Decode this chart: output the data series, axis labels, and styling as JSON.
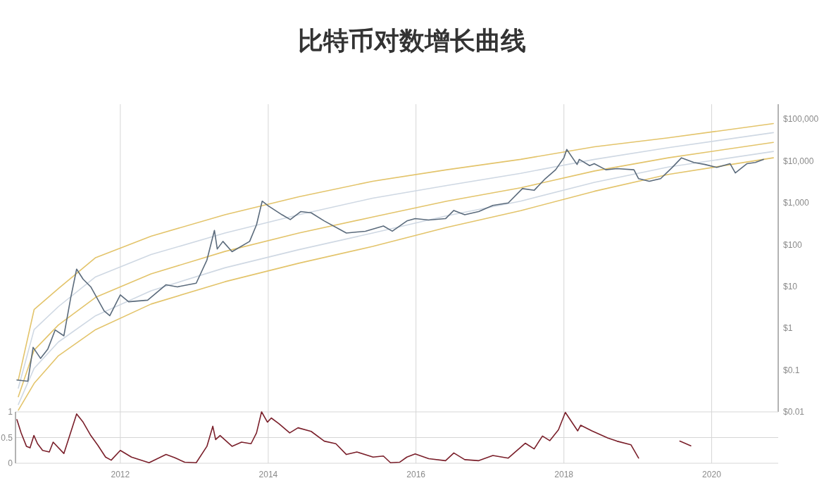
{
  "chart_data": [
    {
      "type": "line",
      "title": "比特币对数增长曲线",
      "log": true,
      "grid": "x",
      "tick_labels": "y",
      "xlim": [
        "2010-08-01",
        "2020-11-25"
      ],
      "xticks": [
        {
          "value": "2012-01-01",
          "label": null
        },
        {
          "value": "2014-01-01",
          "label": null
        },
        {
          "value": "2016-01-01",
          "label": null
        },
        {
          "value": "2018-01-01",
          "label": null
        },
        {
          "value": "2020-01-01",
          "label": null
        }
      ],
      "ylim": [
        0.01,
        230000
      ],
      "yticks": [
        {
          "value": 0.01,
          "label": "$0.01"
        },
        {
          "value": 0.1,
          "label": "$0.1"
        },
        {
          "value": 1,
          "label": "$1"
        },
        {
          "value": 10,
          "label": "$10"
        },
        {
          "value": 100,
          "label": "$100"
        },
        {
          "value": 1000,
          "label": "$1,000"
        },
        {
          "value": 10000,
          "label": "$10,000"
        },
        {
          "value": 100000,
          "label": "$100,000"
        }
      ],
      "series": [
        {
          "color": "#e3c46b",
          "x": [
            "2010-08-15",
            "2010-11-01",
            "2011-03-01",
            "2011-09-01",
            "2012-06-01",
            "2013-06-01",
            "2014-06-01",
            "2015-06-01",
            "2016-06-01",
            "2017-06-01",
            "2018-06-01",
            "2019-06-01",
            "2020-11-01"
          ],
          "values": [
            0.058,
            2.8,
            8.9,
            49,
            160,
            520,
            1400,
            3300,
            6200,
            11000,
            22000,
            36000,
            79000
          ]
        },
        {
          "color": "#cfd8e3",
          "x": [
            "2010-08-15",
            "2010-11-01",
            "2011-03-01",
            "2011-09-01",
            "2012-06-01",
            "2013-06-01",
            "2014-06-01",
            "2015-06-01",
            "2016-06-01",
            "2017-06-01",
            "2018-06-01",
            "2019-06-01",
            "2020-11-01"
          ],
          "values": [
            0.037,
            0.93,
            3.3,
            17,
            58,
            190,
            520,
            1300,
            2600,
            5100,
            11000,
            21000,
            48000
          ]
        },
        {
          "color": "#e3c46b",
          "x": [
            "2010-08-15",
            "2010-11-01",
            "2011-03-01",
            "2011-09-01",
            "2012-06-01",
            "2013-06-01",
            "2014-06-01",
            "2015-06-01",
            "2016-06-01",
            "2017-06-01",
            "2018-06-01",
            "2019-06-01",
            "2020-11-01"
          ],
          "values": [
            0.023,
            0.3,
            1.2,
            5.5,
            20,
            69,
            190,
            460,
            1100,
            2300,
            5800,
            12000,
            28000
          ]
        },
        {
          "color": "#cfd8e3",
          "x": [
            "2010-08-15",
            "2010-11-01",
            "2011-03-01",
            "2011-09-01",
            "2012-06-01",
            "2013-06-01",
            "2014-06-01",
            "2015-06-01",
            "2016-06-01",
            "2017-06-01",
            "2018-06-01",
            "2019-06-01",
            "2020-11-01"
          ],
          "values": [
            0.015,
            0.11,
            0.47,
            2.0,
            7.9,
            28,
            76,
            190,
            490,
            1100,
            3100,
            7200,
            17000
          ]
        },
        {
          "color": "#e3c46b",
          "x": [
            "2010-08-15",
            "2010-11-01",
            "2011-03-01",
            "2011-09-01",
            "2012-06-01",
            "2013-06-01",
            "2014-06-01",
            "2015-06-01",
            "2016-06-01",
            "2017-06-01",
            "2018-06-01",
            "2019-06-01",
            "2020-11-01"
          ],
          "values": [
            0.011,
            0.048,
            0.22,
            0.93,
            3.8,
            13,
            36,
            91,
            260,
            650,
            1900,
            4800,
            12000
          ]
        },
        {
          "color": "#5b6b7c",
          "x": [
            "2010-08-08",
            "2010-10-01",
            "2010-10-27",
            "2010-12-03",
            "2011-01-08",
            "2011-02-13",
            "2011-03-28",
            "2011-05-01",
            "2011-05-30",
            "2011-07-01",
            "2011-08-08",
            "2011-10-13",
            "2011-11-10",
            "2012-01-01",
            "2012-02-11",
            "2012-05-15",
            "2012-08-14",
            "2012-10-09",
            "2013-01-10",
            "2013-03-04",
            "2013-04-10",
            "2013-04-24",
            "2013-05-22",
            "2013-07-06",
            "2013-10-01",
            "2013-11-04",
            "2013-12-02",
            "2014-01-01",
            "2014-03-10",
            "2014-04-20",
            "2014-06-10",
            "2014-08-01",
            "2014-10-05",
            "2015-01-22",
            "2015-04-26",
            "2015-07-24",
            "2015-09-06",
            "2015-11-17",
            "2015-12-28",
            "2016-03-04",
            "2016-05-26",
            "2016-07-06",
            "2016-08-29",
            "2016-11-06",
            "2017-01-15",
            "2017-04-01",
            "2017-06-10",
            "2017-08-07",
            "2017-10-01",
            "2017-11-21",
            "2018-01-01",
            "2018-01-15",
            "2018-03-07",
            "2018-03-18",
            "2018-05-08",
            "2018-05-31",
            "2018-07-27",
            "2018-09-20",
            "2018-12-13",
            "2019-01-05",
            "2019-02-27",
            "2019-04-24",
            "2019-06-21",
            "2019-08-05",
            "2019-10-05",
            "2019-11-29",
            "2020-01-26",
            "2020-04-01",
            "2020-04-27",
            "2020-06-24",
            "2020-08-04",
            "2020-09-13"
          ],
          "values": [
            0.058,
            0.054,
            0.35,
            0.19,
            0.32,
            0.91,
            0.66,
            5.4,
            26,
            15,
            9.8,
            2.6,
            2.0,
            6.3,
            4.3,
            4.7,
            11,
            9.8,
            12,
            43,
            220,
            79,
            120,
            68,
            120,
            300,
            1100,
            850,
            520,
            400,
            620,
            580,
            370,
            190,
            210,
            280,
            210,
            370,
            420,
            390,
            420,
            660,
            520,
            620,
            870,
            1000,
            2200,
            2000,
            3800,
            6200,
            12000,
            19000,
            8300,
            11000,
            7800,
            8700,
            6200,
            6600,
            6200,
            3800,
            3300,
            3800,
            7100,
            12000,
            9300,
            8300,
            7100,
            8700,
            5200,
            8700,
            9300,
            11000
          ]
        }
      ]
    },
    {
      "type": "line",
      "grid": true,
      "xlim": [
        "2010-08-01",
        "2020-11-25"
      ],
      "xticks": [
        {
          "value": "2012-01-01",
          "label": "2012"
        },
        {
          "value": "2014-01-01",
          "label": "2014"
        },
        {
          "value": "2016-01-01",
          "label": "2016"
        },
        {
          "value": "2018-01-01",
          "label": "2018"
        },
        {
          "value": "2020-01-01",
          "label": "2020"
        }
      ],
      "ylim": [
        0,
        1
      ],
      "yticks": [
        0,
        0.5,
        1
      ],
      "series": [
        {
          "color": "#7a1f2a",
          "x": [
            "2010-08-08",
            "2010-08-29",
            "2010-09-24",
            "2010-10-12",
            "2010-10-31",
            "2010-11-18",
            "2010-12-13",
            "2011-01-15",
            "2011-02-03",
            "2011-03-28",
            "2011-05-08",
            "2011-05-30",
            "2011-07-01",
            "2011-08-08",
            "2011-09-12",
            "2011-10-20",
            "2011-11-17",
            "2012-01-01",
            "2012-02-25",
            "2012-05-22",
            "2012-08-14",
            "2012-09-25",
            "2012-11-14",
            "2013-01-10",
            "2013-03-04",
            "2013-04-02",
            "2013-04-16",
            "2013-05-08",
            "2013-07-06",
            "2013-08-22",
            "2013-10-08",
            "2013-11-04",
            "2013-11-29",
            "2013-12-28",
            "2014-01-16",
            "2014-02-23",
            "2014-04-17",
            "2014-05-28",
            "2014-08-01",
            "2014-10-05",
            "2014-12-01",
            "2015-01-22",
            "2015-03-15",
            "2015-06-03",
            "2015-07-24",
            "2015-08-28",
            "2015-10-12",
            "2015-11-17",
            "2015-12-28",
            "2016-03-04",
            "2016-05-26",
            "2016-07-06",
            "2016-08-29",
            "2016-11-06",
            "2017-01-15",
            "2017-04-01",
            "2017-06-24",
            "2017-08-07",
            "2017-09-17",
            "2017-10-23",
            "2017-12-05",
            "2018-01-08",
            "2018-03-10",
            "2018-03-25",
            "2018-05-19",
            "2018-08-07",
            "2018-09-20",
            "2018-11-28",
            "2019-01-05",
            "2019-03-01",
            "2019-07-28",
            "2019-09-20"
          ],
          "values": [
            0.85,
            0.59,
            0.33,
            0.3,
            0.54,
            0.38,
            0.25,
            0.22,
            0.41,
            0.19,
            0.69,
            0.96,
            0.8,
            0.54,
            0.35,
            0.12,
            0.06,
            0.25,
            0.12,
            0.01,
            0.17,
            0.11,
            0.02,
            0.01,
            0.33,
            0.72,
            0.46,
            0.54,
            0.33,
            0.41,
            0.38,
            0.59,
            1.0,
            0.8,
            0.88,
            0.77,
            0.59,
            0.69,
            0.62,
            0.43,
            0.38,
            0.17,
            0.22,
            0.12,
            0.14,
            0.01,
            0.02,
            0.12,
            0.18,
            0.09,
            0.05,
            0.2,
            0.07,
            0.05,
            0.15,
            0.1,
            0.39,
            0.28,
            0.53,
            0.44,
            0.65,
            0.99,
            0.63,
            0.74,
            0.63,
            0.49,
            0.43,
            0.36,
            0.1,
            null,
            0.43,
            0.34
          ]
        }
      ]
    }
  ]
}
